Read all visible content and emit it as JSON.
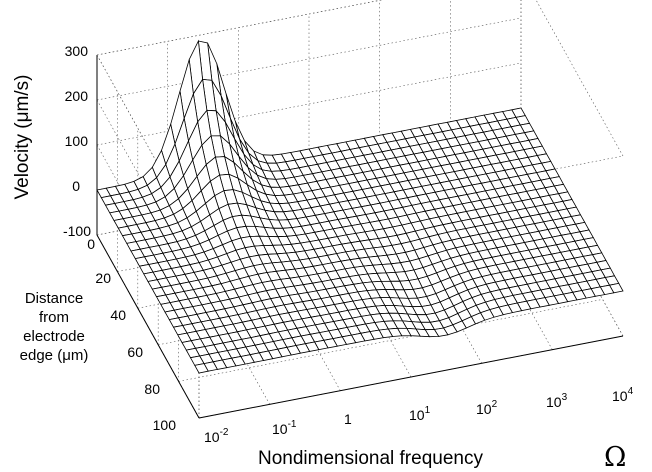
{
  "chart_data": {
    "type": "surface3d",
    "title": "",
    "z_axis": {
      "label": "Velocity (μm/s)",
      "range": [
        -100,
        300
      ],
      "ticks": [
        "300",
        "200",
        "100",
        "0",
        "-100"
      ]
    },
    "y_axis": {
      "label_lines": [
        "Distance",
        "from",
        "electrode",
        "edge (μm)"
      ],
      "range": [
        0,
        100
      ],
      "ticks": [
        "0",
        "20",
        "40",
        "60",
        "80",
        "100"
      ]
    },
    "x_axis": {
      "label": "Nondimensional frequency",
      "symbol": "Ω",
      "scale": "log",
      "range": [
        0.01,
        10000
      ],
      "ticks": [
        {
          "base": "10",
          "exp": "-2"
        },
        {
          "base": "10",
          "exp": "-1"
        },
        {
          "base": "1",
          "exp": ""
        },
        {
          "base": "10",
          "exp": "1"
        },
        {
          "base": "10",
          "exp": "2"
        },
        {
          "base": "10",
          "exp": "3"
        },
        {
          "base": "10",
          "exp": "4"
        }
      ]
    },
    "surface": {
      "description_values": "velocity peak near distance 0 at frequency about 0.3, decaying with distance; small negative dip near frequency 10-100",
      "peak": {
        "frequency": 0.3,
        "distance": 0,
        "velocity": 290
      },
      "dip": {
        "frequency": 30,
        "velocity": -25
      }
    },
    "grid": true
  }
}
